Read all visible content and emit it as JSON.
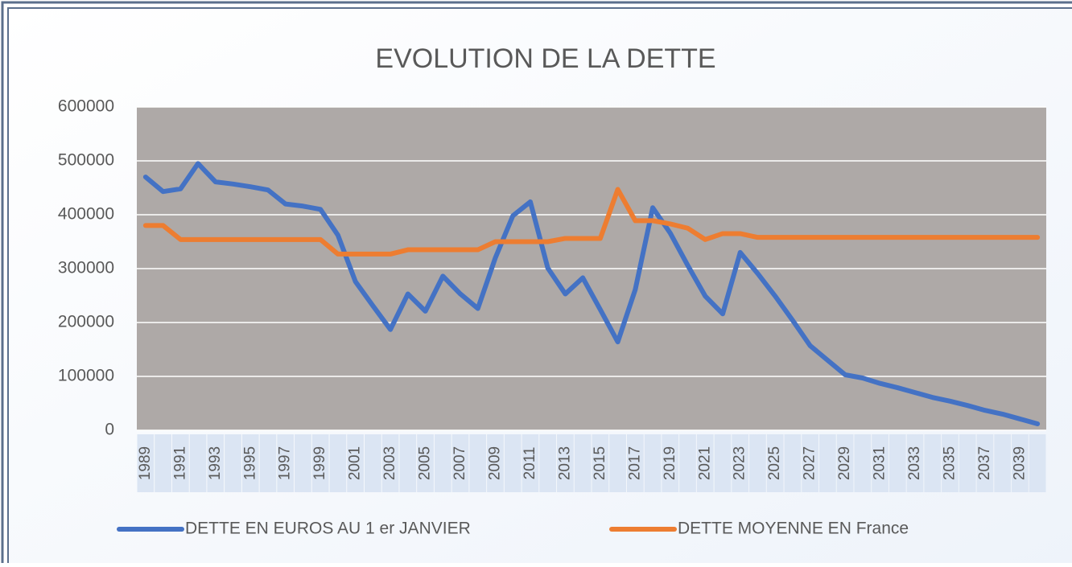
{
  "chart_data": {
    "type": "line",
    "title": "EVOLUTION DE LA DETTE",
    "categories": [
      "1989",
      null,
      "1991",
      null,
      "1993",
      null,
      "1995",
      null,
      "1997",
      null,
      "1999",
      null,
      "2001",
      null,
      "2003",
      null,
      "2005",
      null,
      "2007",
      null,
      "2009",
      null,
      "2011",
      null,
      "2013",
      null,
      "2015",
      null,
      "2017",
      null,
      "2019",
      null,
      "2021",
      null,
      "2023",
      null,
      "2025",
      null,
      "2027",
      null,
      "2029",
      null,
      "2031",
      null,
      "2033",
      null,
      "2035",
      null,
      "2037",
      null,
      "2039",
      null
    ],
    "series": [
      {
        "name": "DETTE EN EUROS AU 1 er  JANVIER",
        "color": "#4472c4",
        "values": [
          470000,
          443000,
          448000,
          495000,
          461000,
          457000,
          452000,
          446000,
          420000,
          416000,
          410000,
          362000,
          276000,
          231000,
          187000,
          253000,
          221000,
          286000,
          253000,
          226000,
          320000,
          398000,
          424000,
          301000,
          253000,
          283000,
          224000,
          164000,
          261000,
          413000,
          366000,
          306000,
          249000,
          216000,
          330000,
          291000,
          249000,
          204000,
          157000,
          130000,
          103000,
          97000,
          87000,
          79000,
          70000,
          61000,
          54000,
          46000,
          37000,
          30000,
          21000,
          12000
        ]
      },
      {
        "name": "DETTE MOYENNE  EN France",
        "color": "#ed7d31",
        "values": [
          380000,
          380000,
          354000,
          354000,
          354000,
          354000,
          354000,
          354000,
          354000,
          354000,
          354000,
          327000,
          327000,
          327000,
          327000,
          335000,
          335000,
          335000,
          335000,
          335000,
          350000,
          350000,
          350000,
          350000,
          356000,
          356000,
          356000,
          447000,
          389000,
          389000,
          383000,
          375000,
          354000,
          365000,
          365000,
          358000,
          358000,
          358000,
          358000,
          358000,
          358000,
          358000,
          358000,
          358000,
          358000,
          358000,
          358000,
          358000,
          358000,
          358000,
          358000,
          358000
        ]
      }
    ],
    "ylim": [
      0,
      600000
    ],
    "yticks": [
      0,
      100000,
      200000,
      300000,
      400000,
      500000,
      600000
    ],
    "grid": true
  }
}
